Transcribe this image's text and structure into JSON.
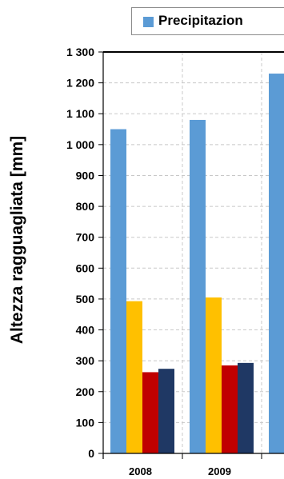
{
  "chart_data": {
    "type": "bar",
    "title": "",
    "xlabel": "",
    "ylabel": "Altezza ragguagliata [mm]",
    "ylim": [
      0,
      1300
    ],
    "yticks": [
      0,
      100,
      200,
      300,
      400,
      500,
      600,
      700,
      800,
      900,
      1000,
      1100,
      1200,
      1300
    ],
    "ytick_labels": [
      "0",
      "100",
      "200",
      "300",
      "400",
      "500",
      "600",
      "700",
      "800",
      "900",
      "1 000",
      "1 100",
      "1 200",
      "1 300"
    ],
    "categories": [
      "2008",
      "2009",
      ""
    ],
    "series": [
      {
        "name": "Precipitazion",
        "color": "#5b9bd5",
        "values": [
          1050,
          1080,
          1230
        ]
      },
      {
        "color": "#ffc000",
        "values": [
          493,
          505,
          null
        ]
      },
      {
        "color": "#c00000",
        "values": [
          263,
          285,
          null
        ]
      },
      {
        "color": "#1f3864",
        "values": [
          274,
          293,
          null
        ]
      }
    ],
    "grid": true,
    "legend": "top"
  }
}
